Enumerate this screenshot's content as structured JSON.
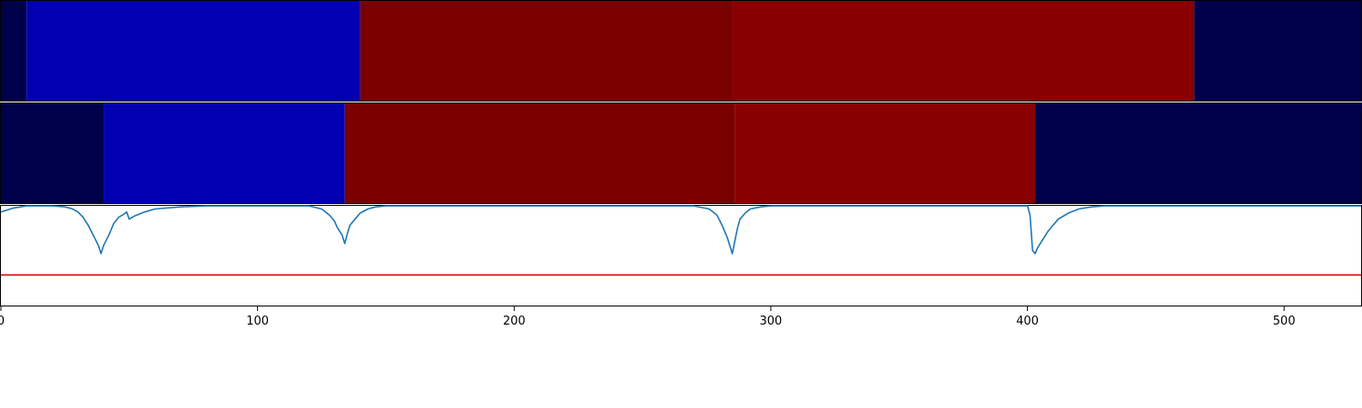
{
  "chart_data": [
    {
      "type": "heatmap",
      "panel": "top-band",
      "xlim": [
        0,
        530
      ],
      "segments": [
        {
          "x0": 0,
          "x1": 10,
          "color": "#00004a"
        },
        {
          "x0": 10,
          "x1": 140,
          "color": "#0000b0"
        },
        {
          "x0": 140,
          "x1": 285,
          "color": "#7a0000"
        },
        {
          "x0": 285,
          "x1": 465,
          "color": "#880000"
        },
        {
          "x0": 465,
          "x1": 530,
          "color": "#00004a"
        }
      ]
    },
    {
      "type": "heatmap",
      "panel": "middle-band",
      "xlim": [
        0,
        530
      ],
      "segments": [
        {
          "x0": 0,
          "x1": 40,
          "color": "#00004a"
        },
        {
          "x0": 40,
          "x1": 134,
          "color": "#0000b0"
        },
        {
          "x0": 134,
          "x1": 286,
          "color": "#7a0000"
        },
        {
          "x0": 286,
          "x1": 403,
          "color": "#880000"
        },
        {
          "x0": 403,
          "x1": 530,
          "color": "#00004a"
        }
      ]
    },
    {
      "type": "line",
      "panel": "bottom-line",
      "xlim": [
        0,
        530
      ],
      "ylim": [
        0,
        1
      ],
      "grid": false,
      "xticks": [
        0,
        100,
        200,
        300,
        400,
        500
      ],
      "threshold": {
        "y": 0.31,
        "color": "#e00000"
      },
      "series": [
        {
          "color": "#1f77b4",
          "x": [
            0,
            5,
            10,
            20,
            25,
            28,
            30,
            32,
            34,
            36,
            38,
            39,
            40,
            42,
            44,
            46,
            48,
            49,
            50,
            52,
            56,
            60,
            70,
            80,
            120,
            125,
            128,
            130,
            131,
            133,
            134,
            135,
            136,
            138,
            140,
            143,
            146,
            150,
            200,
            270,
            276,
            279,
            281,
            283,
            285,
            286,
            287,
            288,
            290,
            292,
            296,
            300,
            350,
            400,
            401,
            402,
            403,
            404,
            406,
            408,
            410,
            412,
            416,
            420,
            425,
            430,
            440,
            530
          ],
          "y": [
            0.93,
            0.97,
            0.99,
            0.99,
            0.98,
            0.96,
            0.93,
            0.88,
            0.8,
            0.7,
            0.6,
            0.52,
            0.6,
            0.7,
            0.82,
            0.88,
            0.91,
            0.93,
            0.86,
            0.89,
            0.93,
            0.96,
            0.98,
            0.99,
            0.99,
            0.96,
            0.9,
            0.84,
            0.78,
            0.7,
            0.62,
            0.72,
            0.8,
            0.86,
            0.92,
            0.96,
            0.98,
            0.99,
            0.99,
            0.99,
            0.96,
            0.9,
            0.8,
            0.68,
            0.52,
            0.65,
            0.77,
            0.86,
            0.92,
            0.96,
            0.98,
            0.99,
            0.99,
            0.99,
            0.9,
            0.55,
            0.52,
            0.58,
            0.66,
            0.74,
            0.8,
            0.86,
            0.92,
            0.96,
            0.98,
            0.99,
            0.99,
            0.99
          ]
        }
      ]
    }
  ]
}
